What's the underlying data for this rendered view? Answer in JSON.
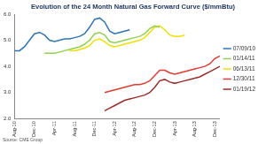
{
  "chart_data": {
    "type": "line",
    "title": "Evolution of the 24 Month Natural Gas Forward Curve ($/mmBtu)",
    "source": "Source: CME Group",
    "categories": [
      "Aug-10",
      null,
      null,
      null,
      "Dec-10",
      null,
      null,
      null,
      "Apr-11",
      null,
      null,
      null,
      "Aug-11",
      null,
      null,
      null,
      "Dec-11",
      null,
      null,
      null,
      "Apr-12",
      null,
      null,
      null,
      "Aug-12",
      null,
      null,
      null,
      "Dec-12",
      null,
      null,
      null,
      "Apr-13",
      null,
      null,
      null,
      "Aug-13",
      null,
      null,
      null,
      "Dec-13",
      null
    ],
    "series": [
      {
        "name": "07/09/10",
        "color": "#2e75b6",
        "values": [
          4.6,
          4.6,
          4.75,
          5.0,
          5.25,
          5.3,
          5.2,
          5.0,
          4.95,
          5.0,
          5.05,
          5.05,
          5.1,
          5.15,
          5.25,
          5.5,
          5.8,
          5.85,
          5.7,
          5.35,
          5.25,
          5.3,
          5.35,
          5.4,
          null,
          null,
          null,
          null,
          null,
          null,
          null,
          null,
          null,
          null,
          null,
          null,
          null,
          null,
          null,
          null,
          null,
          null
        ]
      },
      {
        "name": "01/14/11",
        "color": "#92d050",
        "values": [
          null,
          null,
          null,
          null,
          null,
          null,
          4.5,
          4.5,
          4.5,
          4.55,
          4.6,
          4.65,
          4.7,
          4.75,
          4.85,
          5.0,
          5.25,
          5.3,
          5.2,
          4.95,
          4.9,
          4.95,
          5.0,
          5.05,
          5.1,
          5.15,
          5.25,
          5.45,
          5.55,
          5.5,
          null,
          null,
          null,
          null,
          null,
          null,
          null,
          null,
          null,
          null,
          null,
          null
        ]
      },
      {
        "name": "06/13/11",
        "color": "#f0e000",
        "values": [
          null,
          null,
          null,
          null,
          null,
          null,
          null,
          null,
          null,
          null,
          null,
          4.6,
          4.6,
          4.65,
          4.7,
          4.8,
          5.0,
          5.05,
          4.95,
          4.8,
          4.75,
          4.8,
          4.85,
          4.9,
          4.95,
          5.0,
          5.1,
          5.3,
          5.5,
          5.55,
          5.4,
          5.2,
          5.15,
          5.15,
          5.2,
          null,
          null,
          null,
          null,
          null,
          null,
          null
        ]
      },
      {
        "name": "12/30/11",
        "color": "#e03c31",
        "values": [
          null,
          null,
          null,
          null,
          null,
          null,
          null,
          null,
          null,
          null,
          null,
          null,
          null,
          null,
          null,
          null,
          null,
          null,
          3.0,
          3.05,
          3.1,
          3.15,
          3.2,
          3.25,
          3.3,
          3.3,
          3.35,
          3.45,
          3.65,
          3.85,
          3.85,
          3.75,
          3.7,
          3.75,
          3.8,
          3.85,
          3.9,
          3.95,
          4.0,
          4.1,
          4.3,
          4.4
        ]
      },
      {
        "name": "01/19/12",
        "color": "#9b2d2d",
        "values": [
          null,
          null,
          null,
          null,
          null,
          null,
          null,
          null,
          null,
          null,
          null,
          null,
          null,
          null,
          null,
          null,
          null,
          null,
          2.3,
          2.4,
          2.5,
          2.6,
          2.7,
          2.75,
          2.8,
          2.85,
          2.9,
          3.0,
          3.2,
          3.45,
          3.5,
          3.4,
          3.35,
          3.4,
          3.45,
          3.5,
          3.55,
          3.6,
          3.7,
          3.8,
          3.9,
          4.0
        ]
      }
    ],
    "ylim": [
      2,
      6
    ],
    "yticks": [
      {
        "value": 2,
        "label": "2.0"
      },
      {
        "value": 3,
        "label": "3.0"
      },
      {
        "value": 4,
        "label": "4.0"
      },
      {
        "value": 5,
        "label": "5.0"
      },
      {
        "value": 6,
        "label": "6.0"
      }
    ],
    "grid": false,
    "legend": "right"
  }
}
